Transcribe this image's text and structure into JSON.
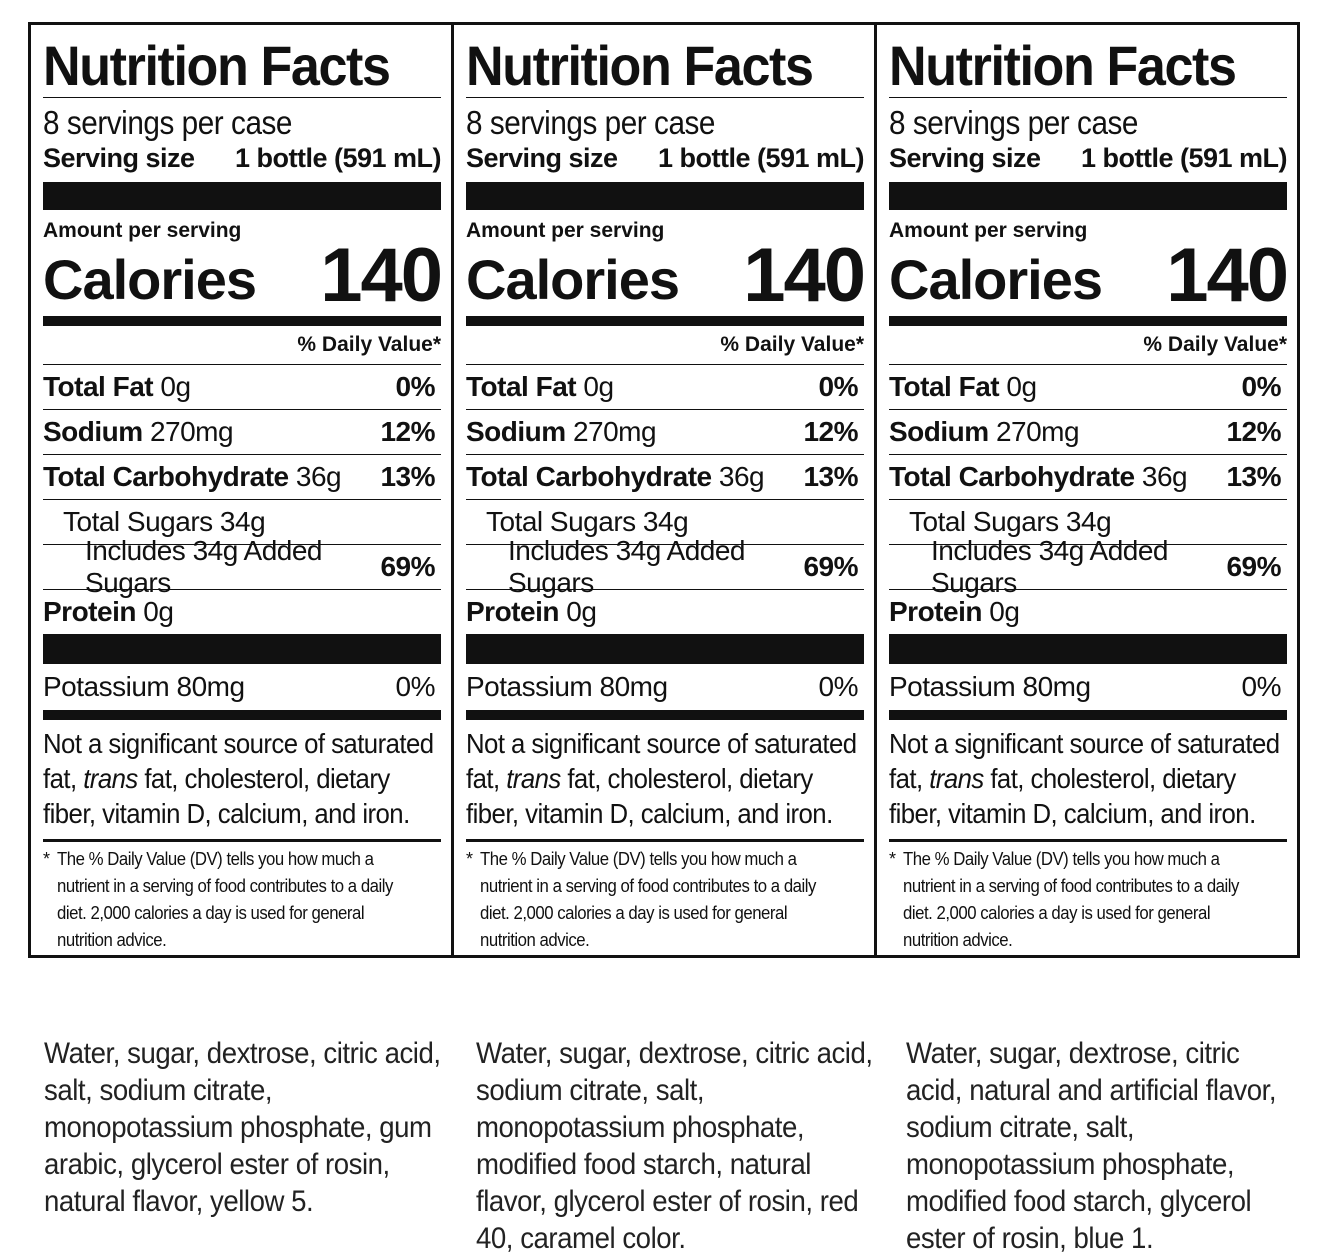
{
  "panels": [
    {
      "title": "Nutrition Facts",
      "servings_per_container": "8 servings per case",
      "serving_size_label": "Serving size",
      "serving_size_value": "1 bottle (591 mL)",
      "amount_per_serving": "Amount per serving",
      "calories_label": "Calories",
      "calories_value": "140",
      "daily_value_header": "% Daily Value*",
      "total_fat": {
        "label": "Total Fat",
        "amount": "0g",
        "dv": "0%"
      },
      "sodium": {
        "label": "Sodium",
        "amount": "270mg",
        "dv": "12%"
      },
      "total_carb": {
        "label": "Total Carbohydrate",
        "amount": "36g",
        "dv": "13%"
      },
      "total_sugars": {
        "label": "Total Sugars 34g"
      },
      "added_sugars": {
        "label": "Includes 34g Added Sugars",
        "dv": "69%"
      },
      "protein": {
        "label": "Protein",
        "amount": "0g"
      },
      "potassium": {
        "label": "Potassium 80mg",
        "dv": "0%"
      },
      "note_pre": "Not a significant source of saturated fat, ",
      "note_italic": "trans",
      "note_post": " fat, cholesterol, dietary fiber, vitamin D, calcium, and iron.",
      "footnote_star": "*",
      "footnote": "The % Daily Value (DV) tells you how much a nutrient in a serving of food contributes to a daily diet. 2,000 calories a day is used for general nutrition advice."
    },
    {
      "title": "Nutrition Facts",
      "servings_per_container": "8 servings per case",
      "serving_size_label": "Serving size",
      "serving_size_value": "1 bottle (591 mL)",
      "amount_per_serving": "Amount per serving",
      "calories_label": "Calories",
      "calories_value": "140",
      "daily_value_header": "% Daily Value*",
      "total_fat": {
        "label": "Total Fat",
        "amount": "0g",
        "dv": "0%"
      },
      "sodium": {
        "label": "Sodium",
        "amount": "270mg",
        "dv": "12%"
      },
      "total_carb": {
        "label": "Total Carbohydrate",
        "amount": "36g",
        "dv": "13%"
      },
      "total_sugars": {
        "label": "Total Sugars 34g"
      },
      "added_sugars": {
        "label": "Includes 34g Added Sugars",
        "dv": "69%"
      },
      "protein": {
        "label": "Protein",
        "amount": "0g"
      },
      "potassium": {
        "label": "Potassium 80mg",
        "dv": "0%"
      },
      "note_pre": "Not a significant source of saturated fat, ",
      "note_italic": "trans",
      "note_post": " fat, cholesterol, dietary fiber, vitamin D, calcium, and iron.",
      "footnote_star": "*",
      "footnote": "The % Daily Value (DV) tells you how much a nutrient in a serving of food contributes to a daily diet. 2,000 calories a day is used for general nutrition advice."
    },
    {
      "title": "Nutrition Facts",
      "servings_per_container": "8 servings per case",
      "serving_size_label": "Serving size",
      "serving_size_value": "1 bottle (591 mL)",
      "amount_per_serving": "Amount per serving",
      "calories_label": "Calories",
      "calories_value": "140",
      "daily_value_header": "% Daily Value*",
      "total_fat": {
        "label": "Total Fat",
        "amount": "0g",
        "dv": "0%"
      },
      "sodium": {
        "label": "Sodium",
        "amount": "270mg",
        "dv": "12%"
      },
      "total_carb": {
        "label": "Total Carbohydrate",
        "amount": "36g",
        "dv": "13%"
      },
      "total_sugars": {
        "label": "Total Sugars 34g"
      },
      "added_sugars": {
        "label": "Includes 34g Added Sugars",
        "dv": "69%"
      },
      "protein": {
        "label": "Protein",
        "amount": "0g"
      },
      "potassium": {
        "label": "Potassium 80mg",
        "dv": "0%"
      },
      "note_pre": "Not a significant source of saturated fat, ",
      "note_italic": "trans",
      "note_post": " fat, cholesterol, dietary fiber, vitamin D, calcium, and iron.",
      "footnote_star": "*",
      "footnote": "The % Daily Value (DV) tells you how much a nutrient in a serving of food contributes to a daily diet. 2,000 calories a day is used for general nutrition advice."
    }
  ],
  "ingredients": [
    "Water, sugar, dextrose, citric acid, salt, sodium citrate, monopotassium phosphate, gum arabic, glycerol ester of rosin, natural flavor, yellow 5.",
    "Water, sugar, dextrose, citric acid, sodium citrate, salt, monopotassium phosphate, modified food starch, natural flavor, glycerol ester of rosin, red 40, caramel color.",
    "Water, sugar, dextrose, citric acid, natural and artificial flavor, sodium citrate, salt, monopotassium phosphate, modified food starch, glycerol ester of rosin, blue 1."
  ]
}
